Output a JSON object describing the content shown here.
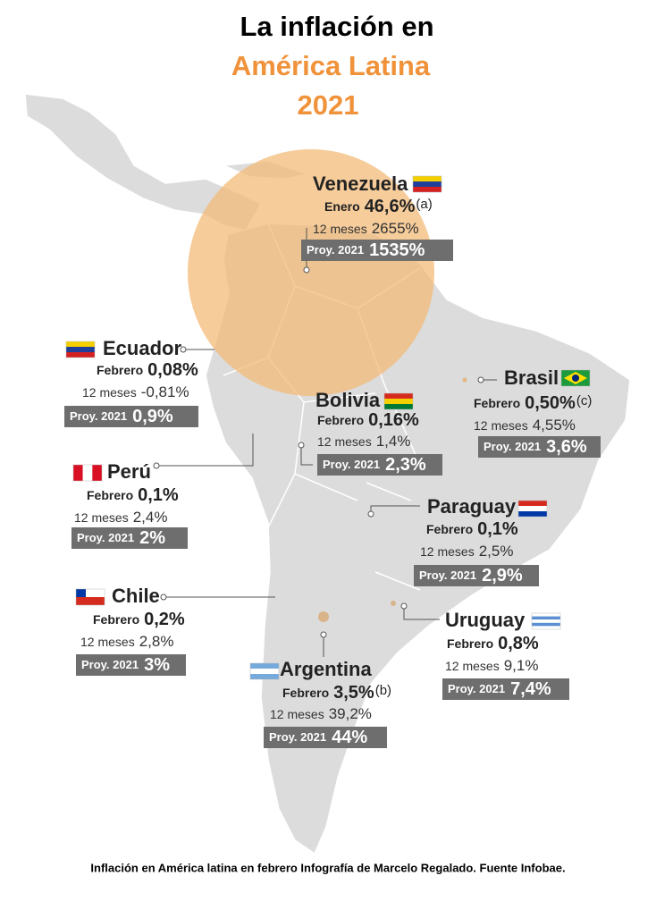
{
  "title": {
    "line1": "La inflación en",
    "line2": "América Latina",
    "line3": "2021"
  },
  "countries": [
    {
      "name": "Venezuela",
      "month_label": "Enero",
      "month_value": "46,6%",
      "note": "(a)",
      "year_label": "12 meses",
      "year_value": "2655%",
      "proj_label": "Proy. 2021",
      "proj_value": "1535%"
    },
    {
      "name": "Ecuador",
      "month_label": "Febrero",
      "month_value": "0,08%",
      "year_label": "12 meses",
      "year_value": "-0,81%",
      "proj_label": "Proy. 2021",
      "proj_value": "0,9%"
    },
    {
      "name": "Brasil",
      "month_label": "Febrero",
      "month_value": "0,50%",
      "note": "(c)",
      "year_label": "12 meses",
      "year_value": "4,55%",
      "proj_label": "Proy. 2021",
      "proj_value": "3,6%"
    },
    {
      "name": "Bolivia",
      "month_label": "Febrero",
      "month_value": "0,16%",
      "year_label": "12 meses",
      "year_value": "1,4%",
      "proj_label": "Proy. 2021",
      "proj_value": "2,3%"
    },
    {
      "name": "Perú",
      "month_label": "Febrero",
      "month_value": "0,1%",
      "year_label": "12 meses",
      "year_value": "2,4%",
      "proj_label": "Proy. 2021",
      "proj_value": "2%"
    },
    {
      "name": "Paraguay",
      "month_label": "Febrero",
      "month_value": "0,1%",
      "year_label": "12 meses",
      "year_value": "2,5%",
      "proj_label": "Proy. 2021",
      "proj_value": "2,9%"
    },
    {
      "name": "Chile",
      "month_label": "Febrero",
      "month_value": "0,2%",
      "year_label": "12 meses",
      "year_value": "2,8%",
      "proj_label": "Proy. 2021",
      "proj_value": "3%"
    },
    {
      "name": "Uruguay",
      "month_label": "Febrero",
      "month_value": "0,8%",
      "year_label": "12 meses",
      "year_value": "9,1%",
      "proj_label": "Proy. 2021",
      "proj_value": "7,4%"
    },
    {
      "name": "Argentina",
      "month_label": "Febrero",
      "month_value": "3,5%",
      "note": "(b)",
      "year_label": "12 meses",
      "year_value": "39,2%",
      "proj_label": "Proy. 2021",
      "proj_value": "44%"
    }
  ],
  "caption": "Inflación en América latina en febrero Infografía de Marcelo Regalado. Fuente Infobae."
}
